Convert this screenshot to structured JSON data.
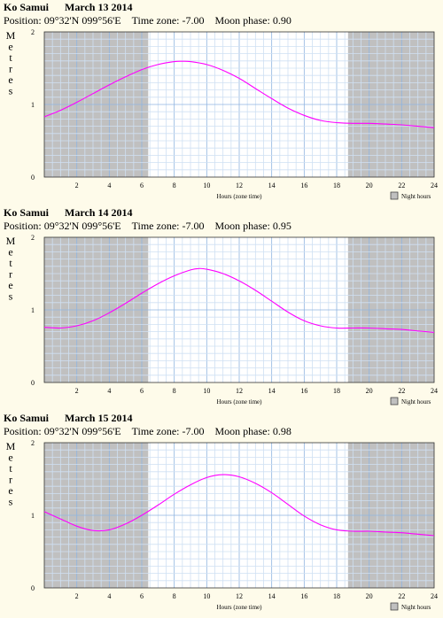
{
  "panels": [
    {
      "location": "Ko Samui",
      "date": "March 13 2014",
      "position_label": "Position:",
      "position_value": "09°32'N 099°56'E",
      "timezone_label": "Time zone:",
      "timezone_value": "-7.00",
      "moon_label": "Moon phase:",
      "moon_value": "0.90"
    },
    {
      "location": "Ko Samui",
      "date": "March 14 2014",
      "position_label": "Position:",
      "position_value": "09°32'N 099°56'E",
      "timezone_label": "Time zone:",
      "timezone_value": "-7.00",
      "moon_label": "Moon phase:",
      "moon_value": "0.95"
    },
    {
      "location": "Ko Samui",
      "date": "March 15 2014",
      "position_label": "Position:",
      "position_value": "09°32'N 099°56'E",
      "timezone_label": "Time zone:",
      "timezone_value": "-7.00",
      "moon_label": "Moon phase:",
      "moon_value": "0.98"
    }
  ],
  "chart_data": [
    {
      "type": "line",
      "title": "Ko Samui March 13 2014",
      "ylabel": "Metres",
      "xlabel": "Hours (zone time)",
      "xlim": [
        0,
        24
      ],
      "ylim": [
        0,
        2
      ],
      "xticks": [
        2,
        4,
        6,
        8,
        10,
        12,
        14,
        16,
        18,
        20,
        22,
        24
      ],
      "yticks": [
        0,
        1,
        2
      ],
      "night_hours": [
        [
          0,
          6.4
        ],
        [
          18.7,
          24
        ]
      ],
      "legend": "Night hours",
      "grid": true,
      "line_color": "#ff00ff",
      "night_color": "#c0c0c0",
      "x": [
        0,
        1,
        2,
        3,
        4,
        5,
        6,
        7,
        8,
        8.5,
        9,
        10,
        11,
        12,
        13,
        14,
        15,
        16,
        17,
        18,
        19,
        20,
        21,
        22,
        23,
        24
      ],
      "y": [
        0.83,
        0.92,
        1.03,
        1.15,
        1.27,
        1.38,
        1.48,
        1.55,
        1.59,
        1.595,
        1.59,
        1.55,
        1.47,
        1.36,
        1.22,
        1.08,
        0.95,
        0.85,
        0.78,
        0.75,
        0.74,
        0.74,
        0.73,
        0.72,
        0.7,
        0.68
      ]
    },
    {
      "type": "line",
      "title": "Ko Samui March 14 2014",
      "ylabel": "Metres",
      "xlabel": "Hours (zone time)",
      "xlim": [
        0,
        24
      ],
      "ylim": [
        0,
        2
      ],
      "xticks": [
        2,
        4,
        6,
        8,
        10,
        12,
        14,
        16,
        18,
        20,
        22,
        24
      ],
      "yticks": [
        0,
        1,
        2
      ],
      "night_hours": [
        [
          0,
          6.4
        ],
        [
          18.7,
          24
        ]
      ],
      "legend": "Night hours",
      "grid": true,
      "line_color": "#ff00ff",
      "night_color": "#c0c0c0",
      "x": [
        0,
        1,
        2,
        3,
        4,
        5,
        6,
        7,
        8,
        9,
        9.5,
        10,
        11,
        12,
        13,
        14,
        15,
        16,
        17,
        18,
        19,
        20,
        21,
        22,
        23,
        24
      ],
      "y": [
        0.76,
        0.75,
        0.78,
        0.85,
        0.96,
        1.09,
        1.23,
        1.36,
        1.47,
        1.55,
        1.57,
        1.56,
        1.5,
        1.4,
        1.27,
        1.12,
        0.97,
        0.85,
        0.78,
        0.75,
        0.75,
        0.75,
        0.74,
        0.73,
        0.71,
        0.69
      ]
    },
    {
      "type": "line",
      "title": "Ko Samui March 15 2014",
      "ylabel": "Metres",
      "xlabel": "Hours (zone time)",
      "xlim": [
        0,
        24
      ],
      "ylim": [
        0,
        2
      ],
      "xticks": [
        2,
        4,
        6,
        8,
        10,
        12,
        14,
        16,
        18,
        20,
        22,
        24
      ],
      "yticks": [
        0,
        1,
        2
      ],
      "night_hours": [
        [
          0,
          6.4
        ],
        [
          18.7,
          24
        ]
      ],
      "legend": "Night hours",
      "grid": true,
      "line_color": "#ff00ff",
      "night_color": "#c0c0c0",
      "x": [
        0,
        1,
        2,
        3,
        4,
        5,
        6,
        7,
        8,
        9,
        10,
        11,
        12,
        13,
        14,
        15,
        16,
        17,
        18,
        19,
        20,
        21,
        22,
        23,
        24
      ],
      "y": [
        1.05,
        0.95,
        0.85,
        0.79,
        0.8,
        0.88,
        1.0,
        1.14,
        1.29,
        1.42,
        1.52,
        1.56,
        1.53,
        1.44,
        1.31,
        1.15,
        0.99,
        0.87,
        0.8,
        0.78,
        0.78,
        0.77,
        0.76,
        0.74,
        0.72
      ]
    }
  ]
}
